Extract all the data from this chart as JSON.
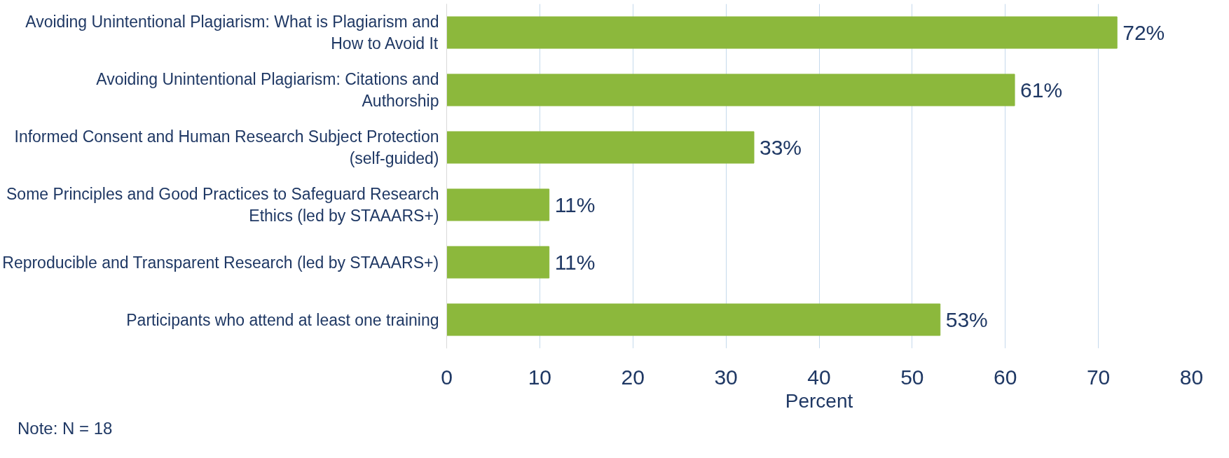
{
  "chart_data": {
    "type": "bar",
    "orientation": "horizontal",
    "categories": [
      "Avoiding Unintentional Plagiarism: What is Plagiarism and How to Avoid It",
      "Avoiding Unintentional Plagiarism: Citations and Authorship",
      "Informed Consent and Human Research Subject Protection (self-guided)",
      "Some Principles and Good Practices to Safeguard Research Ethics (led by STAAARS+)",
      "Reproducible and Transparent Research (led by STAAARS+)",
      "Participants who attend at least one training"
    ],
    "values": [
      72,
      61,
      33,
      11,
      11,
      53
    ],
    "value_labels": [
      "72%",
      "61%",
      "33%",
      "11%",
      "11%",
      "53%"
    ],
    "color": "#8cb83c",
    "xlabel": "Percent",
    "xlim": [
      0,
      80
    ],
    "xticks": [
      0,
      10,
      20,
      30,
      40,
      50,
      60,
      70,
      80
    ],
    "grid": "x",
    "annotations": [
      "Note: N = 18"
    ]
  }
}
